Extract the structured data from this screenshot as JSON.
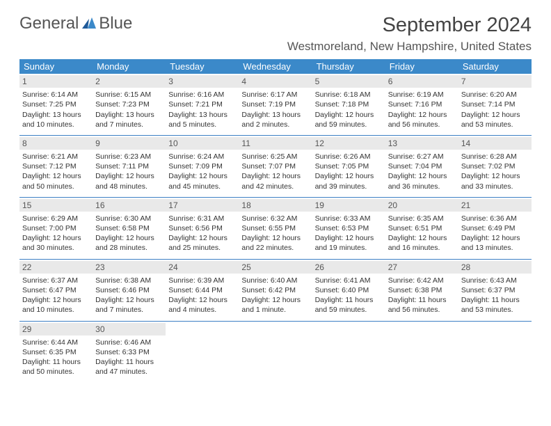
{
  "logo": {
    "line1": "General",
    "line2": "Blue",
    "color1": "#555555",
    "color2": "#3b7fc4"
  },
  "title": "September 2024",
  "location": "Westmoreland, New Hampshire, United States",
  "header_bg": "#3b89c9",
  "daynum_bg": "#e9e9e9",
  "border_color": "#3b7fc4",
  "day_names": [
    "Sunday",
    "Monday",
    "Tuesday",
    "Wednesday",
    "Thursday",
    "Friday",
    "Saturday"
  ],
  "weeks": [
    [
      {
        "n": "1",
        "sunrise": "Sunrise: 6:14 AM",
        "sunset": "Sunset: 7:25 PM",
        "d1": "Daylight: 13 hours",
        "d2": "and 10 minutes."
      },
      {
        "n": "2",
        "sunrise": "Sunrise: 6:15 AM",
        "sunset": "Sunset: 7:23 PM",
        "d1": "Daylight: 13 hours",
        "d2": "and 7 minutes."
      },
      {
        "n": "3",
        "sunrise": "Sunrise: 6:16 AM",
        "sunset": "Sunset: 7:21 PM",
        "d1": "Daylight: 13 hours",
        "d2": "and 5 minutes."
      },
      {
        "n": "4",
        "sunrise": "Sunrise: 6:17 AM",
        "sunset": "Sunset: 7:19 PM",
        "d1": "Daylight: 13 hours",
        "d2": "and 2 minutes."
      },
      {
        "n": "5",
        "sunrise": "Sunrise: 6:18 AM",
        "sunset": "Sunset: 7:18 PM",
        "d1": "Daylight: 12 hours",
        "d2": "and 59 minutes."
      },
      {
        "n": "6",
        "sunrise": "Sunrise: 6:19 AM",
        "sunset": "Sunset: 7:16 PM",
        "d1": "Daylight: 12 hours",
        "d2": "and 56 minutes."
      },
      {
        "n": "7",
        "sunrise": "Sunrise: 6:20 AM",
        "sunset": "Sunset: 7:14 PM",
        "d1": "Daylight: 12 hours",
        "d2": "and 53 minutes."
      }
    ],
    [
      {
        "n": "8",
        "sunrise": "Sunrise: 6:21 AM",
        "sunset": "Sunset: 7:12 PM",
        "d1": "Daylight: 12 hours",
        "d2": "and 50 minutes."
      },
      {
        "n": "9",
        "sunrise": "Sunrise: 6:23 AM",
        "sunset": "Sunset: 7:11 PM",
        "d1": "Daylight: 12 hours",
        "d2": "and 48 minutes."
      },
      {
        "n": "10",
        "sunrise": "Sunrise: 6:24 AM",
        "sunset": "Sunset: 7:09 PM",
        "d1": "Daylight: 12 hours",
        "d2": "and 45 minutes."
      },
      {
        "n": "11",
        "sunrise": "Sunrise: 6:25 AM",
        "sunset": "Sunset: 7:07 PM",
        "d1": "Daylight: 12 hours",
        "d2": "and 42 minutes."
      },
      {
        "n": "12",
        "sunrise": "Sunrise: 6:26 AM",
        "sunset": "Sunset: 7:05 PM",
        "d1": "Daylight: 12 hours",
        "d2": "and 39 minutes."
      },
      {
        "n": "13",
        "sunrise": "Sunrise: 6:27 AM",
        "sunset": "Sunset: 7:04 PM",
        "d1": "Daylight: 12 hours",
        "d2": "and 36 minutes."
      },
      {
        "n": "14",
        "sunrise": "Sunrise: 6:28 AM",
        "sunset": "Sunset: 7:02 PM",
        "d1": "Daylight: 12 hours",
        "d2": "and 33 minutes."
      }
    ],
    [
      {
        "n": "15",
        "sunrise": "Sunrise: 6:29 AM",
        "sunset": "Sunset: 7:00 PM",
        "d1": "Daylight: 12 hours",
        "d2": "and 30 minutes."
      },
      {
        "n": "16",
        "sunrise": "Sunrise: 6:30 AM",
        "sunset": "Sunset: 6:58 PM",
        "d1": "Daylight: 12 hours",
        "d2": "and 28 minutes."
      },
      {
        "n": "17",
        "sunrise": "Sunrise: 6:31 AM",
        "sunset": "Sunset: 6:56 PM",
        "d1": "Daylight: 12 hours",
        "d2": "and 25 minutes."
      },
      {
        "n": "18",
        "sunrise": "Sunrise: 6:32 AM",
        "sunset": "Sunset: 6:55 PM",
        "d1": "Daylight: 12 hours",
        "d2": "and 22 minutes."
      },
      {
        "n": "19",
        "sunrise": "Sunrise: 6:33 AM",
        "sunset": "Sunset: 6:53 PM",
        "d1": "Daylight: 12 hours",
        "d2": "and 19 minutes."
      },
      {
        "n": "20",
        "sunrise": "Sunrise: 6:35 AM",
        "sunset": "Sunset: 6:51 PM",
        "d1": "Daylight: 12 hours",
        "d2": "and 16 minutes."
      },
      {
        "n": "21",
        "sunrise": "Sunrise: 6:36 AM",
        "sunset": "Sunset: 6:49 PM",
        "d1": "Daylight: 12 hours",
        "d2": "and 13 minutes."
      }
    ],
    [
      {
        "n": "22",
        "sunrise": "Sunrise: 6:37 AM",
        "sunset": "Sunset: 6:47 PM",
        "d1": "Daylight: 12 hours",
        "d2": "and 10 minutes."
      },
      {
        "n": "23",
        "sunrise": "Sunrise: 6:38 AM",
        "sunset": "Sunset: 6:46 PM",
        "d1": "Daylight: 12 hours",
        "d2": "and 7 minutes."
      },
      {
        "n": "24",
        "sunrise": "Sunrise: 6:39 AM",
        "sunset": "Sunset: 6:44 PM",
        "d1": "Daylight: 12 hours",
        "d2": "and 4 minutes."
      },
      {
        "n": "25",
        "sunrise": "Sunrise: 6:40 AM",
        "sunset": "Sunset: 6:42 PM",
        "d1": "Daylight: 12 hours",
        "d2": "and 1 minute."
      },
      {
        "n": "26",
        "sunrise": "Sunrise: 6:41 AM",
        "sunset": "Sunset: 6:40 PM",
        "d1": "Daylight: 11 hours",
        "d2": "and 59 minutes."
      },
      {
        "n": "27",
        "sunrise": "Sunrise: 6:42 AM",
        "sunset": "Sunset: 6:38 PM",
        "d1": "Daylight: 11 hours",
        "d2": "and 56 minutes."
      },
      {
        "n": "28",
        "sunrise": "Sunrise: 6:43 AM",
        "sunset": "Sunset: 6:37 PM",
        "d1": "Daylight: 11 hours",
        "d2": "and 53 minutes."
      }
    ],
    [
      {
        "n": "29",
        "sunrise": "Sunrise: 6:44 AM",
        "sunset": "Sunset: 6:35 PM",
        "d1": "Daylight: 11 hours",
        "d2": "and 50 minutes."
      },
      {
        "n": "30",
        "sunrise": "Sunrise: 6:46 AM",
        "sunset": "Sunset: 6:33 PM",
        "d1": "Daylight: 11 hours",
        "d2": "and 47 minutes."
      },
      null,
      null,
      null,
      null,
      null
    ]
  ]
}
